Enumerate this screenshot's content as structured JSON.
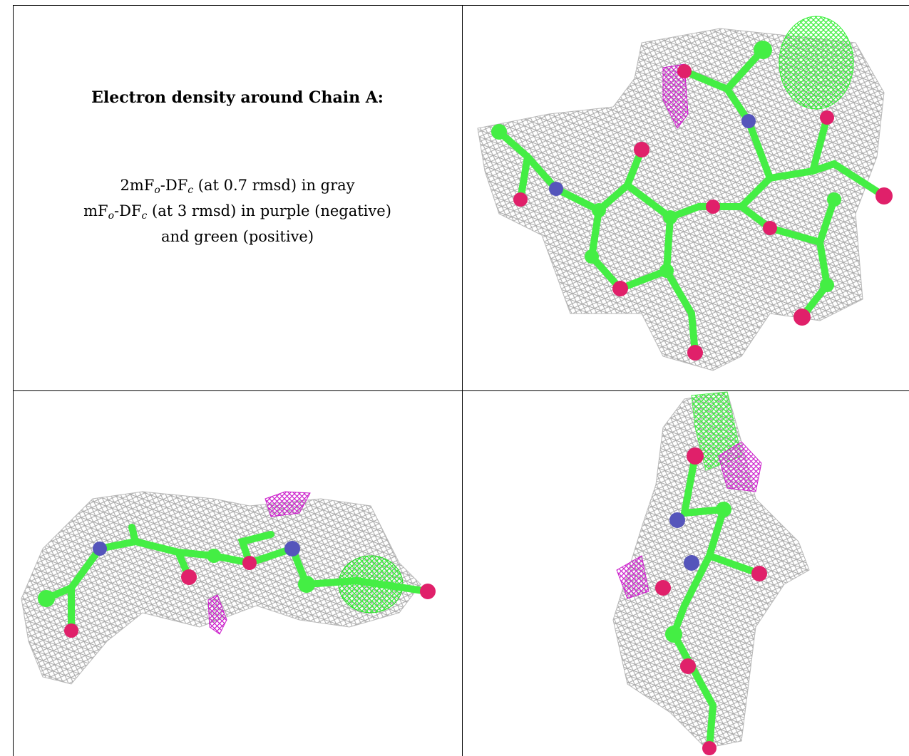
{
  "heading": "Electron density around Chain A:",
  "legend_lines": [
    [
      {
        "text": "2mF"
      },
      {
        "sub": "o"
      },
      {
        "text": "-DF"
      },
      {
        "sub": "c"
      },
      {
        "text": " (at 0.7 rmsd) in gray"
      }
    ],
    [
      {
        "text": "mF"
      },
      {
        "sub": "o"
      },
      {
        "text": "-DF"
      },
      {
        "sub": "c"
      },
      {
        "text": " (at 3 rmsd) in purple (negative)"
      }
    ],
    [
      {
        "text": "and green (positive)"
      }
    ]
  ]
}
